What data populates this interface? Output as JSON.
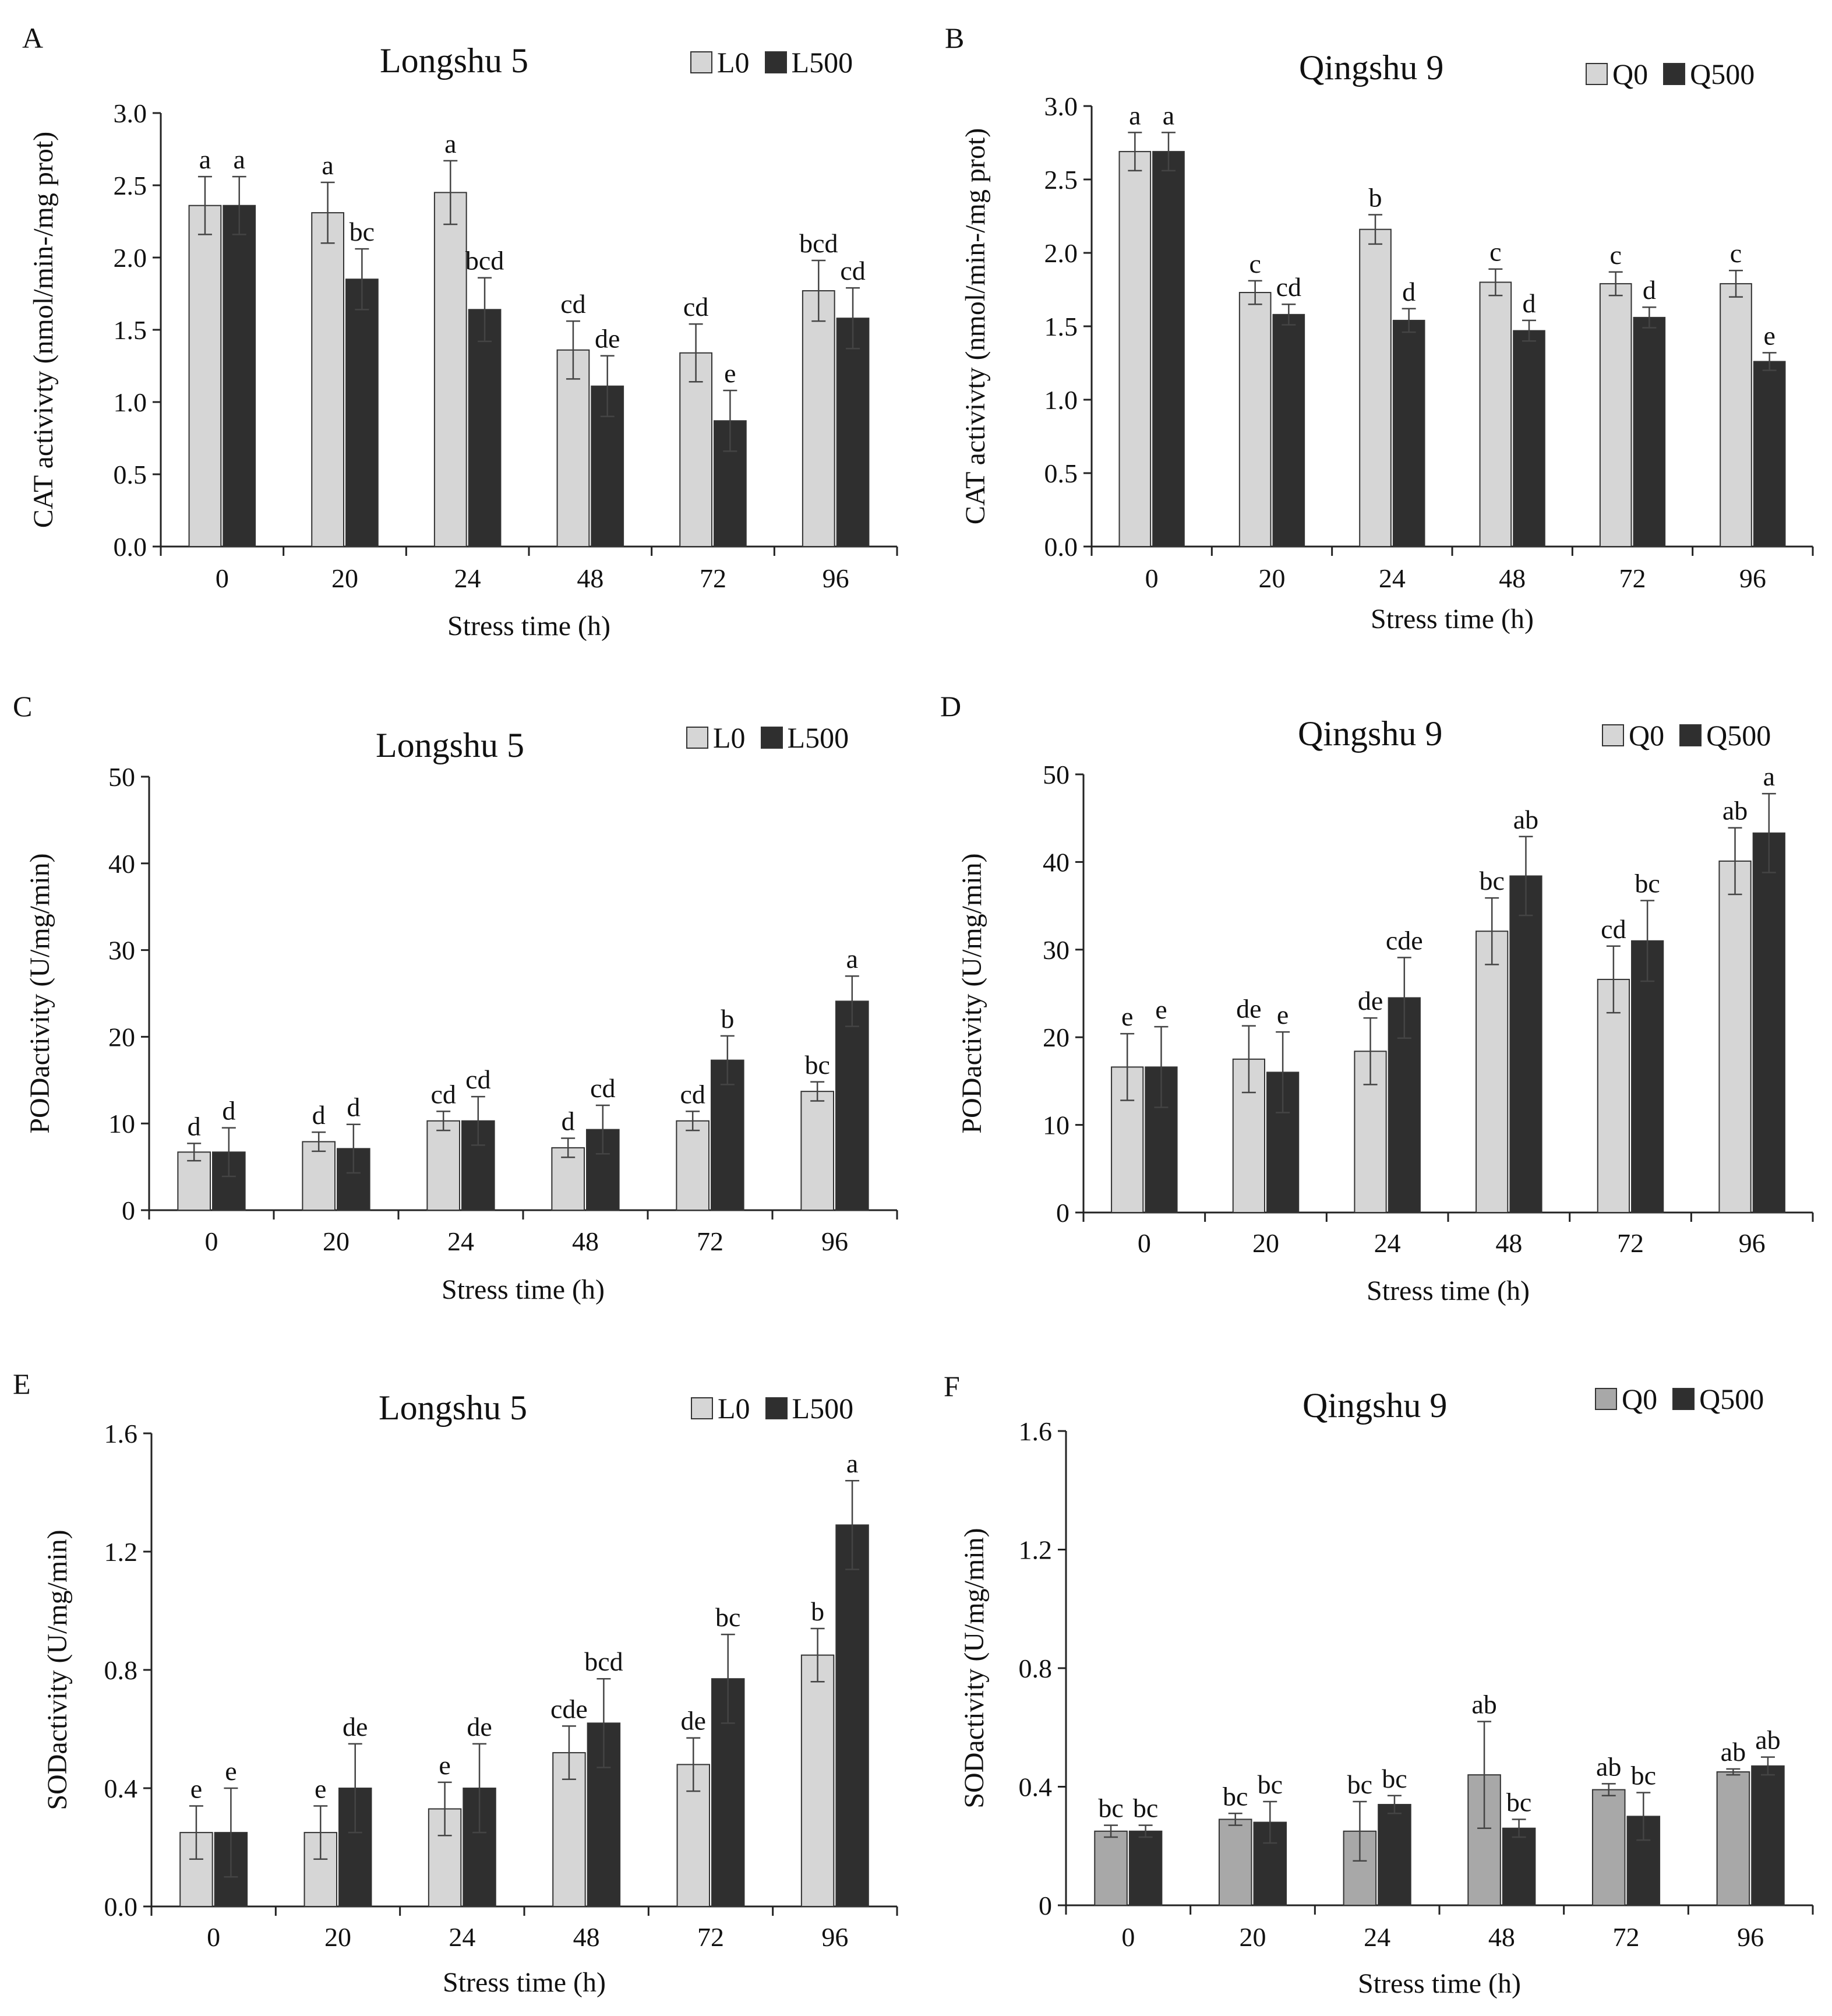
{
  "panels": [
    {
      "letter": "A",
      "title": "Longshu 5",
      "legend": [
        "L0",
        "L500"
      ],
      "ylabel": "CAT activivty (nmol/min-/mg prot)",
      "xlabel": "Stress time (h)"
    },
    {
      "letter": "B",
      "title": "Qingshu 9",
      "legend": [
        "Q0",
        "Q500"
      ],
      "ylabel": "CAT activivty (nmol/min-/mg prot)",
      "xlabel": "Stress time (h)"
    },
    {
      "letter": "C",
      "title": "Longshu 5",
      "legend": [
        "L0",
        "L500"
      ],
      "ylabel": "PODactivity (U/mg/min)",
      "xlabel": "Stress time (h)"
    },
    {
      "letter": "D",
      "title": "Qingshu 9",
      "legend": [
        "Q0",
        "Q500"
      ],
      "ylabel": "PODactivity (U/mg/min)",
      "xlabel": "Stress time (h)"
    },
    {
      "letter": "E",
      "title": "Longshu 5",
      "legend": [
        "L0",
        "L500"
      ],
      "ylabel": "SODactivity (U/mg/min)",
      "xlabel": "Stress time (h)"
    },
    {
      "letter": "F",
      "title": "Qingshu 9",
      "legend": [
        "Q0",
        "Q500"
      ],
      "ylabel": "SODactivity (U/mg/min)",
      "xlabel": "Stress time (h)"
    }
  ],
  "chart_data": [
    {
      "type": "bar",
      "title": "Longshu 5",
      "xlabel": "Stress time (h)",
      "ylabel": "CAT activivty (nmol/min-/mg prot)",
      "categories": [
        "0",
        "20",
        "24",
        "48",
        "72",
        "96"
      ],
      "ylim": [
        0,
        3.0
      ],
      "yticks": [
        "0.0",
        "0.5",
        "1.0",
        "1.5",
        "2.0",
        "2.5",
        "3.0"
      ],
      "series": [
        {
          "name": "L0",
          "color": "#d6d6d6",
          "values": [
            2.36,
            2.31,
            2.45,
            1.36,
            1.34,
            1.77
          ],
          "errors": [
            0.2,
            0.21,
            0.22,
            0.2,
            0.2,
            0.21
          ],
          "letters": [
            "a",
            "a",
            "a",
            "cd",
            "cd",
            "bcd"
          ]
        },
        {
          "name": "L500",
          "color": "#2f2f2f",
          "values": [
            2.36,
            1.85,
            1.64,
            1.11,
            0.87,
            1.58
          ],
          "errors": [
            0.2,
            0.21,
            0.22,
            0.21,
            0.21,
            0.21
          ],
          "letters": [
            "a",
            "bc",
            "bcd",
            "de",
            "e",
            "cd"
          ]
        }
      ]
    },
    {
      "type": "bar",
      "title": "Qingshu 9",
      "xlabel": "Stress time (h)",
      "ylabel": "CAT activivty (nmol/min-/mg prot)",
      "categories": [
        "0",
        "20",
        "24",
        "48",
        "72",
        "96"
      ],
      "ylim": [
        0,
        3.0
      ],
      "yticks": [
        "0.0",
        "0.5",
        "1.0",
        "1.5",
        "2.0",
        "2.5",
        "3.0"
      ],
      "series": [
        {
          "name": "Q0",
          "color": "#d6d6d6",
          "values": [
            2.69,
            1.73,
            2.16,
            1.8,
            1.79,
            1.79
          ],
          "errors": [
            0.13,
            0.08,
            0.1,
            0.09,
            0.08,
            0.09
          ],
          "letters": [
            "a",
            "c",
            "b",
            "c",
            "c",
            "c"
          ]
        },
        {
          "name": "Q500",
          "color": "#2f2f2f",
          "values": [
            2.69,
            1.58,
            1.54,
            1.47,
            1.56,
            1.26
          ],
          "errors": [
            0.13,
            0.07,
            0.08,
            0.07,
            0.07,
            0.06
          ],
          "letters": [
            "a",
            "cd",
            "d",
            "d",
            "d",
            "e"
          ]
        }
      ]
    },
    {
      "type": "bar",
      "title": "Longshu 5",
      "xlabel": "Stress time (h)",
      "ylabel": "PODactivity (U/mg/min)",
      "categories": [
        "0",
        "20",
        "24",
        "48",
        "72",
        "96"
      ],
      "ylim": [
        0,
        50
      ],
      "yticks": [
        "0",
        "10",
        "20",
        "30",
        "40",
        "50"
      ],
      "series": [
        {
          "name": "L0",
          "color": "#d6d6d6",
          "values": [
            6.7,
            7.9,
            10.3,
            7.2,
            10.3,
            13.7
          ],
          "errors": [
            1.0,
            1.1,
            1.1,
            1.1,
            1.1,
            1.1
          ],
          "letters": [
            "d",
            "d",
            "cd",
            "d",
            "cd",
            "bc"
          ]
        },
        {
          "name": "L500",
          "color": "#2f2f2f",
          "values": [
            6.7,
            7.1,
            10.3,
            9.3,
            17.3,
            24.1
          ],
          "errors": [
            2.8,
            2.8,
            2.8,
            2.8,
            2.8,
            2.9
          ],
          "letters": [
            "d",
            "d",
            "cd",
            "cd",
            "b",
            "a"
          ]
        }
      ]
    },
    {
      "type": "bar",
      "title": "Qingshu 9",
      "xlabel": "Stress time (h)",
      "ylabel": "PODactivity (U/mg/min)",
      "categories": [
        "0",
        "20",
        "24",
        "48",
        "72",
        "96"
      ],
      "ylim": [
        0,
        50
      ],
      "yticks": [
        "0",
        "10",
        "20",
        "30",
        "40",
        "50"
      ],
      "series": [
        {
          "name": "Q0",
          "color": "#d6d6d6",
          "values": [
            16.6,
            17.5,
            18.4,
            32.1,
            26.6,
            40.1
          ],
          "errors": [
            3.8,
            3.8,
            3.8,
            3.8,
            3.8,
            3.8
          ],
          "letters": [
            "e",
            "de",
            "de",
            "bc",
            "cd",
            "ab"
          ]
        },
        {
          "name": "Q500",
          "color": "#2f2f2f",
          "values": [
            16.6,
            16.0,
            24.5,
            38.4,
            31.0,
            43.3
          ],
          "errors": [
            4.6,
            4.6,
            4.6,
            4.5,
            4.6,
            4.5
          ],
          "letters": [
            "e",
            "e",
            "cde",
            "ab",
            "bc",
            "a"
          ]
        }
      ]
    },
    {
      "type": "bar",
      "title": "Longshu 5",
      "xlabel": "Stress time (h)",
      "ylabel": "SODactivity (U/mg/min)",
      "categories": [
        "0",
        "20",
        "24",
        "48",
        "72",
        "96"
      ],
      "ylim": [
        0,
        1.6
      ],
      "yticks": [
        "0.0",
        "0.4",
        "0.8",
        "1.2",
        "1.6"
      ],
      "series": [
        {
          "name": "L0",
          "color": "#d6d6d6",
          "values": [
            0.25,
            0.25,
            0.33,
            0.52,
            0.48,
            0.85
          ],
          "errors": [
            0.09,
            0.09,
            0.09,
            0.09,
            0.09,
            0.09
          ],
          "letters": [
            "e",
            "e",
            "e",
            "cde",
            "de",
            "b"
          ]
        },
        {
          "name": "L500",
          "color": "#2f2f2f",
          "values": [
            0.25,
            0.4,
            0.4,
            0.62,
            0.77,
            1.29
          ],
          "errors": [
            0.15,
            0.15,
            0.15,
            0.15,
            0.15,
            0.15
          ],
          "letters": [
            "e",
            "de",
            "de",
            "bcd",
            "bc",
            "a"
          ]
        }
      ]
    },
    {
      "type": "bar",
      "title": "Qingshu 9",
      "xlabel": "Stress time (h)",
      "ylabel": "SODactivity (U/mg/min)",
      "categories": [
        "0",
        "20",
        "24",
        "48",
        "72",
        "96"
      ],
      "ylim": [
        0,
        1.6
      ],
      "yticks": [
        "0",
        "0.4",
        "0.8",
        "1.2",
        "1.6"
      ],
      "series": [
        {
          "name": "Q0",
          "color": "#a8a8a8",
          "values": [
            0.25,
            0.29,
            0.25,
            0.44,
            0.39,
            0.45
          ],
          "errors": [
            0.02,
            0.02,
            0.1,
            0.18,
            0.02,
            0.01
          ],
          "letters": [
            "bc",
            "bc",
            "bc",
            "ab",
            "ab",
            "ab"
          ]
        },
        {
          "name": "Q500",
          "color": "#2f2f2f",
          "values": [
            0.25,
            0.28,
            0.34,
            0.26,
            0.3,
            0.47
          ],
          "errors": [
            0.02,
            0.07,
            0.03,
            0.03,
            0.08,
            0.03
          ],
          "letters": [
            "bc",
            "bc",
            "bc",
            "bc",
            "bc",
            "ab"
          ]
        }
      ]
    }
  ]
}
